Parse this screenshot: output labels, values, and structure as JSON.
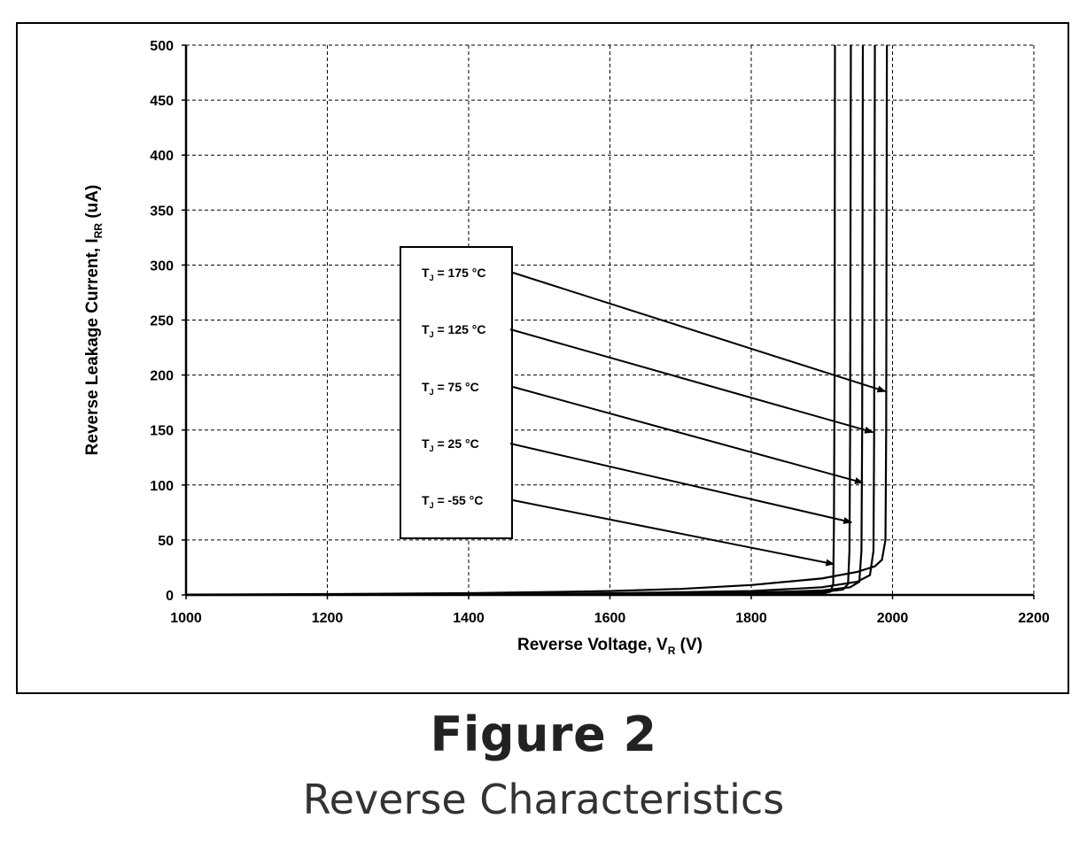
{
  "figure": {
    "title": "Figure 2",
    "caption": "Reverse Characteristics"
  },
  "chart_data": {
    "type": "line",
    "xlabel": {
      "main": "Reverse Voltage, V",
      "sub": "R",
      "suffix": " (V)"
    },
    "ylabel": {
      "main": "Reverse Leakage Current, I",
      "sub": "RR",
      "suffix": " (uA)"
    },
    "xlim": [
      1000,
      2200
    ],
    "ylim": [
      0,
      500
    ],
    "xticks": [
      1000,
      1200,
      1400,
      1600,
      1800,
      2000,
      2200
    ],
    "yticks": [
      0,
      50,
      100,
      150,
      200,
      250,
      300,
      350,
      400,
      450,
      500
    ],
    "grid": true,
    "grid_style": "dashed",
    "line_color": "#000000",
    "series": [
      {
        "name": "T_J = 175 °C",
        "label_main": "T",
        "label_sub": "J",
        "label_rest": " = 175 °C",
        "breakdown_v": 1992,
        "points": [
          [
            1000,
            0.3
          ],
          [
            1200,
            0.8
          ],
          [
            1400,
            1.6
          ],
          [
            1600,
            3.5
          ],
          [
            1700,
            5.5
          ],
          [
            1800,
            9
          ],
          [
            1900,
            15
          ],
          [
            1950,
            21
          ],
          [
            1975,
            26
          ],
          [
            1985,
            32
          ],
          [
            1990,
            50
          ],
          [
            1991,
            150
          ],
          [
            1992,
            500
          ]
        ]
      },
      {
        "name": "T_J = 125 °C",
        "label_main": "T",
        "label_sub": "J",
        "label_rest": " = 125 °C",
        "breakdown_v": 1975,
        "points": [
          [
            1000,
            0.2
          ],
          [
            1200,
            0.4
          ],
          [
            1400,
            0.8
          ],
          [
            1600,
            1.5
          ],
          [
            1800,
            3.5
          ],
          [
            1900,
            7
          ],
          [
            1950,
            12
          ],
          [
            1968,
            18
          ],
          [
            1973,
            40
          ],
          [
            1974,
            150
          ],
          [
            1975,
            500
          ]
        ]
      },
      {
        "name": "T_J = 75 °C",
        "label_main": "T",
        "label_sub": "J",
        "label_rest": " = 75 °C",
        "breakdown_v": 1958,
        "points": [
          [
            1000,
            0.1
          ],
          [
            1200,
            0.2
          ],
          [
            1400,
            0.4
          ],
          [
            1600,
            0.8
          ],
          [
            1800,
            2
          ],
          [
            1900,
            4
          ],
          [
            1940,
            7
          ],
          [
            1953,
            12
          ],
          [
            1956,
            40
          ],
          [
            1957,
            150
          ],
          [
            1958,
            500
          ]
        ]
      },
      {
        "name": "T_J = 25 °C",
        "label_main": "T",
        "label_sub": "J",
        "label_rest": " = 25 °C",
        "breakdown_v": 1940,
        "points": [
          [
            1000,
            0.05
          ],
          [
            1200,
            0.1
          ],
          [
            1400,
            0.2
          ],
          [
            1600,
            0.4
          ],
          [
            1800,
            1
          ],
          [
            1900,
            2.5
          ],
          [
            1930,
            5
          ],
          [
            1937,
            10
          ],
          [
            1939,
            40
          ],
          [
            1940,
            150
          ],
          [
            1941,
            500
          ]
        ]
      },
      {
        "name": "T_J = -55 °C",
        "label_main": "T",
        "label_sub": "J",
        "label_rest": " = -55 °C",
        "breakdown_v": 1918,
        "points": [
          [
            1000,
            0.02
          ],
          [
            1200,
            0.05
          ],
          [
            1400,
            0.1
          ],
          [
            1600,
            0.2
          ],
          [
            1800,
            0.5
          ],
          [
            1900,
            1.2
          ],
          [
            1912,
            3
          ],
          [
            1916,
            10
          ],
          [
            1917,
            60
          ],
          [
            1918,
            200
          ],
          [
            1918.5,
            500
          ]
        ]
      }
    ],
    "arrow_targets": [
      [
        1990,
        185
      ],
      [
        1972,
        148
      ],
      [
        1958,
        102
      ],
      [
        1942,
        66
      ],
      [
        1917,
        28
      ]
    ]
  }
}
